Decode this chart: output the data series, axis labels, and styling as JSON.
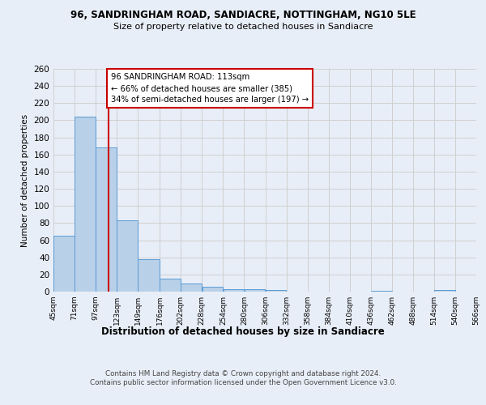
{
  "title": "96, SANDRINGHAM ROAD, SANDIACRE, NOTTINGHAM, NG10 5LE",
  "subtitle": "Size of property relative to detached houses in Sandiacre",
  "xlabel": "Distribution of detached houses by size in Sandiacre",
  "ylabel": "Number of detached properties",
  "footer": "Contains HM Land Registry data © Crown copyright and database right 2024.\nContains public sector information licensed under the Open Government Licence v3.0.",
  "annotation_line1": "96 SANDRINGHAM ROAD: 113sqm",
  "annotation_line2": "← 66% of detached houses are smaller (385)",
  "annotation_line3": "34% of semi-detached houses are larger (197) →",
  "property_size_sqm": 113,
  "bar_left_edges": [
    45,
    71,
    97,
    123,
    149,
    176,
    202,
    228,
    254,
    280,
    306,
    332,
    358,
    384,
    410,
    436,
    462,
    488,
    514,
    540
  ],
  "bar_widths": [
    26,
    26,
    26,
    26,
    27,
    26,
    26,
    26,
    26,
    26,
    26,
    26,
    26,
    26,
    26,
    26,
    26,
    26,
    26,
    26
  ],
  "bar_heights": [
    65,
    204,
    168,
    83,
    38,
    15,
    9,
    6,
    3,
    3,
    2,
    0,
    0,
    0,
    0,
    1,
    0,
    0,
    2,
    0
  ],
  "tick_labels": [
    "45sqm",
    "71sqm",
    "97sqm",
    "123sqm",
    "149sqm",
    "176sqm",
    "202sqm",
    "228sqm",
    "254sqm",
    "280sqm",
    "306sqm",
    "332sqm",
    "358sqm",
    "384sqm",
    "410sqm",
    "436sqm",
    "462sqm",
    "488sqm",
    "514sqm",
    "540sqm",
    "566sqm"
  ],
  "tick_positions": [
    45,
    71,
    97,
    123,
    149,
    176,
    202,
    228,
    254,
    280,
    306,
    332,
    358,
    384,
    410,
    436,
    462,
    488,
    514,
    540,
    566
  ],
  "bar_color": "#b8d0e8",
  "bar_edge_color": "#5b9bd5",
  "vline_color": "#cc0000",
  "vline_x": 113,
  "annotation_box_color": "#cc0000",
  "annotation_bg": "white",
  "ylim": [
    0,
    260
  ],
  "xlim": [
    45,
    566
  ],
  "yticks": [
    0,
    20,
    40,
    60,
    80,
    100,
    120,
    140,
    160,
    180,
    200,
    220,
    240,
    260
  ],
  "grid_color": "#d0d0d0",
  "bg_color": "#e8eef7"
}
